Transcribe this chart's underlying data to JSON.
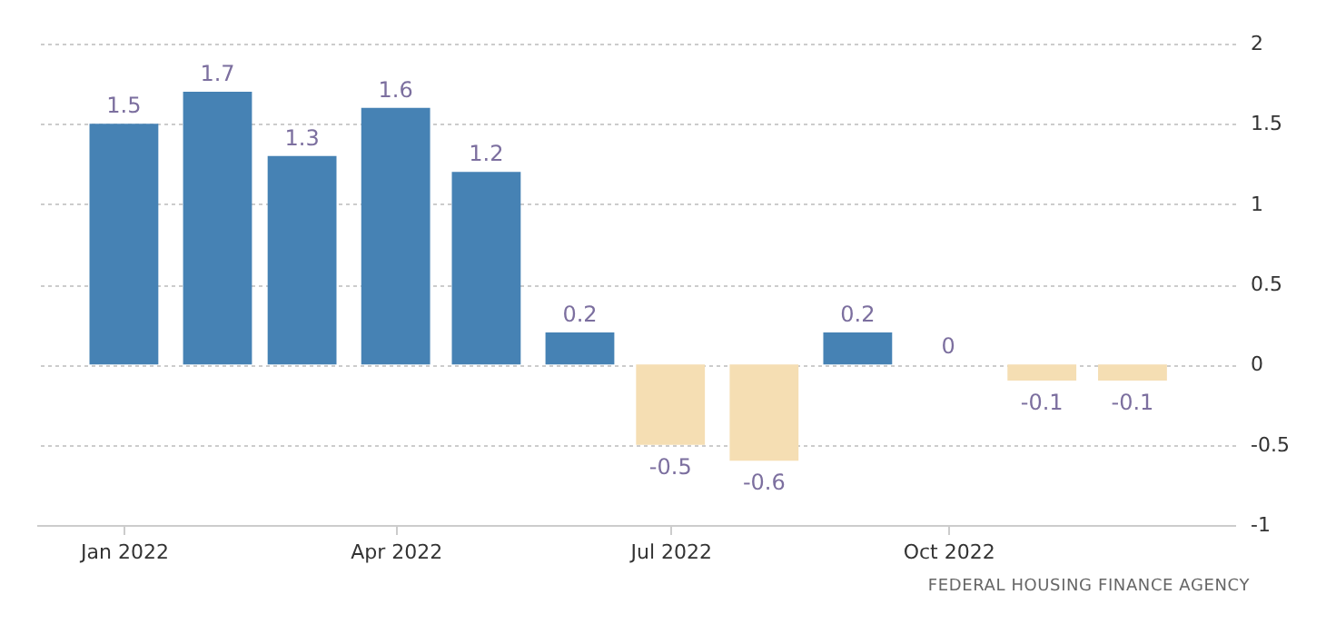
{
  "chart_data": {
    "type": "bar",
    "x": [
      "2022-01",
      "2022-02",
      "2022-03",
      "2022-04",
      "2022-05",
      "2022-06",
      "2022-07",
      "2022-08",
      "2022-09",
      "2022-10",
      "2022-11",
      "2022-12"
    ],
    "values": [
      1.5,
      1.7,
      1.3,
      1.6,
      1.2,
      0.2,
      -0.5,
      -0.6,
      0.2,
      0,
      -0.1,
      -0.1
    ],
    "colors": [
      "#4682b4",
      "#4682b4",
      "#4682b4",
      "#4682b4",
      "#4682b4",
      "#4682b4",
      "#f5deb3",
      "#f5deb3",
      "#4682b4",
      "#4682b4",
      "#f5deb3",
      "#f5deb3"
    ],
    "xlim": [
      "2021-12-03",
      "2023-01-04"
    ],
    "xticks": [
      {
        "value": "2022-01",
        "label": "Jan 2022"
      },
      {
        "value": "2022-04",
        "label": "Apr 2022"
      },
      {
        "value": "2022-07",
        "label": "Jul 2022"
      },
      {
        "value": "2022-10",
        "label": "Oct 2022"
      }
    ],
    "ylim": [
      -1,
      2
    ],
    "yticks": [
      -1,
      -0.5,
      0,
      0.5,
      1,
      1.5,
      2
    ],
    "grid": "y",
    "data_labels": true,
    "annotations": [
      "FEDERAL HOUSING FINANCE AGENCY"
    ]
  }
}
